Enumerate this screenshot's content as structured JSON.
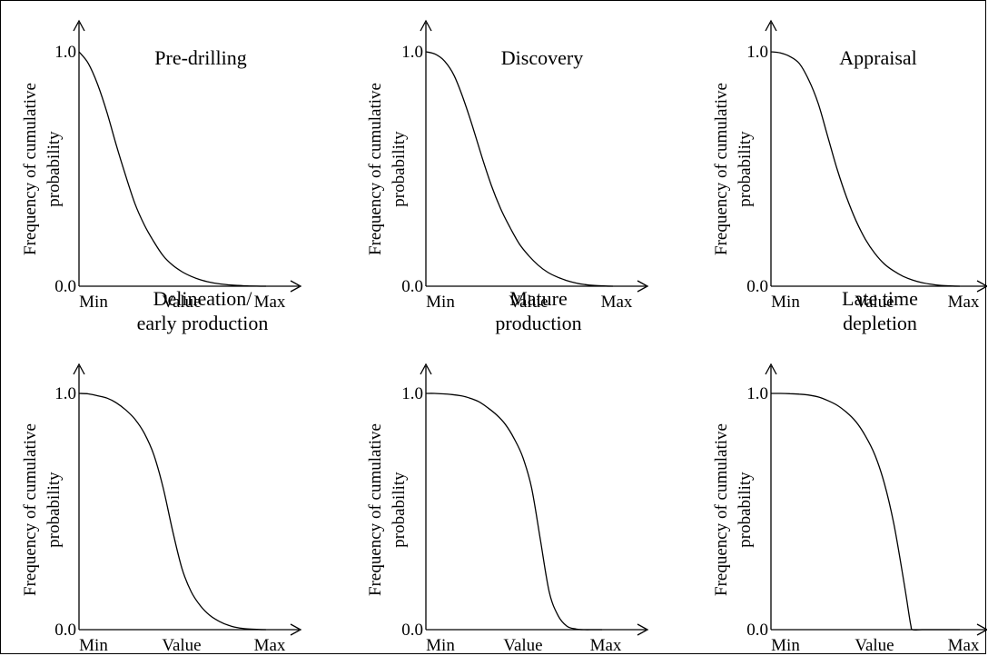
{
  "chart_data": [
    {
      "type": "line",
      "title_lines": [
        "Pre-drilling"
      ],
      "ylabel_lines": [
        "Frequency of cumulative",
        "probability"
      ],
      "xticklabels": [
        "Min",
        "Value",
        "Max"
      ],
      "yticklabels": [
        "0.0",
        "1.0"
      ],
      "ylim": [
        0,
        1
      ],
      "x": [
        0,
        0.05,
        0.1,
        0.15,
        0.2,
        0.25,
        0.3,
        0.35,
        0.4,
        0.45,
        0.5,
        0.55,
        0.6,
        0.65,
        0.7,
        0.75,
        0.8,
        0.85,
        0.9,
        0.95,
        1
      ],
      "y": [
        1.0,
        0.95,
        0.86,
        0.74,
        0.6,
        0.47,
        0.35,
        0.26,
        0.19,
        0.13,
        0.09,
        0.062,
        0.042,
        0.027,
        0.017,
        0.01,
        0.006,
        0.003,
        0.001,
        0.0003,
        0
      ]
    },
    {
      "type": "line",
      "title_lines": [
        "Discovery"
      ],
      "ylabel_lines": [
        "Frequency of cumulative",
        "probability"
      ],
      "xticklabels": [
        "Min",
        "Value",
        "Max"
      ],
      "yticklabels": [
        "0.0",
        "1.0"
      ],
      "ylim": [
        0,
        1
      ],
      "x": [
        0,
        0.05,
        0.1,
        0.15,
        0.2,
        0.25,
        0.3,
        0.35,
        0.4,
        0.45,
        0.5,
        0.55,
        0.6,
        0.65,
        0.7,
        0.75,
        0.8,
        0.85,
        0.9,
        0.95,
        1
      ],
      "y": [
        1.0,
        0.99,
        0.96,
        0.9,
        0.8,
        0.68,
        0.55,
        0.43,
        0.33,
        0.25,
        0.18,
        0.13,
        0.09,
        0.06,
        0.04,
        0.025,
        0.014,
        0.007,
        0.003,
        0.001,
        0
      ]
    },
    {
      "type": "line",
      "title_lines": [
        "Appraisal"
      ],
      "ylabel_lines": [
        "Frequency of cumulative",
        "probability"
      ],
      "xticklabels": [
        "Min",
        "Value",
        "Max"
      ],
      "yticklabels": [
        "0.0",
        "1.0"
      ],
      "ylim": [
        0,
        1
      ],
      "x": [
        0,
        0.05,
        0.1,
        0.15,
        0.2,
        0.25,
        0.3,
        0.35,
        0.4,
        0.45,
        0.5,
        0.55,
        0.6,
        0.65,
        0.7,
        0.75,
        0.8,
        0.85,
        0.9,
        0.95,
        1
      ],
      "y": [
        1.0,
        0.995,
        0.98,
        0.95,
        0.88,
        0.78,
        0.64,
        0.5,
        0.38,
        0.28,
        0.2,
        0.14,
        0.095,
        0.065,
        0.042,
        0.026,
        0.015,
        0.008,
        0.003,
        0.001,
        0
      ]
    },
    {
      "type": "line",
      "title_lines": [
        "Delineation/",
        "early production"
      ],
      "ylabel_lines": [
        "Frequency of cumulative",
        "probability"
      ],
      "xticklabels": [
        "Min",
        "Value",
        "Max"
      ],
      "yticklabels": [
        "0.0",
        "1.0"
      ],
      "ylim": [
        0,
        1
      ],
      "x": [
        0,
        0.05,
        0.1,
        0.15,
        0.2,
        0.25,
        0.3,
        0.35,
        0.4,
        0.45,
        0.5,
        0.55,
        0.6,
        0.65,
        0.7,
        0.75,
        0.8,
        0.85,
        0.9,
        0.95,
        1
      ],
      "y": [
        1.0,
        0.998,
        0.99,
        0.98,
        0.96,
        0.93,
        0.89,
        0.83,
        0.74,
        0.6,
        0.42,
        0.26,
        0.16,
        0.1,
        0.06,
        0.035,
        0.018,
        0.008,
        0.003,
        0.001,
        0
      ]
    },
    {
      "type": "line",
      "title_lines": [
        "Mature",
        "production"
      ],
      "ylabel_lines": [
        "Frequency of cumulative",
        "probability"
      ],
      "xticklabels": [
        "Min",
        "Value",
        "Max"
      ],
      "yticklabels": [
        "0.0",
        "1.0"
      ],
      "ylim": [
        0,
        1
      ],
      "x": [
        0,
        0.05,
        0.1,
        0.15,
        0.2,
        0.25,
        0.3,
        0.35,
        0.4,
        0.45,
        0.5,
        0.55,
        0.6,
        0.65,
        0.7,
        0.75,
        0.8,
        0.85,
        0.9,
        0.95,
        1
      ],
      "y": [
        1.0,
        1.0,
        0.998,
        0.995,
        0.99,
        0.98,
        0.965,
        0.94,
        0.91,
        0.87,
        0.81,
        0.73,
        0.6,
        0.38,
        0.16,
        0.06,
        0.015,
        0.003,
        0,
        0,
        0
      ]
    },
    {
      "type": "line",
      "title_lines": [
        "Late time",
        "depletion"
      ],
      "ylabel_lines": [
        "Frequency of cumulative",
        "probability"
      ],
      "xticklabels": [
        "Min",
        "Value",
        "Max"
      ],
      "yticklabels": [
        "0.0",
        "1.0"
      ],
      "ylim": [
        0,
        1
      ],
      "x": [
        0,
        0.05,
        0.1,
        0.15,
        0.2,
        0.25,
        0.3,
        0.35,
        0.4,
        0.45,
        0.5,
        0.55,
        0.6,
        0.65,
        0.7,
        0.72,
        0.74,
        0.75,
        0.8,
        0.9,
        1
      ],
      "y": [
        1.0,
        1.0,
        0.999,
        0.997,
        0.993,
        0.985,
        0.97,
        0.95,
        0.92,
        0.88,
        0.82,
        0.74,
        0.62,
        0.45,
        0.22,
        0.12,
        0.02,
        0,
        0,
        0,
        0
      ]
    }
  ]
}
